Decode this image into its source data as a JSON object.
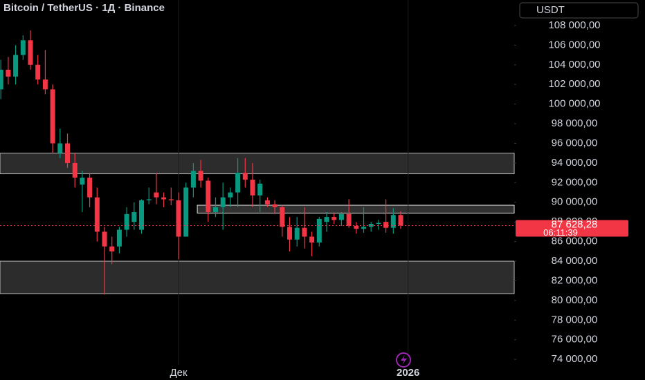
{
  "chart_data": {
    "type": "candlestick",
    "title": "Bitcoin / TetherUS · 1Д · Binance",
    "currency_button": "USDT",
    "up_color": "#089981",
    "down_color": "#f23645",
    "open": [
      101500,
      103500,
      102800,
      105000,
      106500,
      104000,
      102500,
      101500,
      95000,
      96000,
      94000,
      91800,
      92500,
      90500,
      87000,
      85500,
      85500,
      87200,
      88000,
      87200,
      90200,
      91000,
      90500,
      90300,
      90200,
      86500,
      91500,
      93200,
      92200,
      89000,
      89500,
      90500,
      91000,
      93000,
      92300,
      90700,
      90200,
      89800,
      89500,
      87500,
      86200,
      87400,
      86500,
      85900,
      88000,
      88500,
      88200,
      88800,
      87600,
      87300,
      87500,
      87800,
      88000,
      87400,
      88700
    ],
    "high": [
      104500,
      104800,
      106000,
      107000,
      107500,
      105000,
      105500,
      102000,
      97500,
      97000,
      95000,
      93200,
      93000,
      91500,
      87500,
      86500,
      87500,
      89500,
      90000,
      90300,
      91500,
      93000,
      91000,
      91500,
      91000,
      92000,
      94000,
      94300,
      92500,
      90500,
      92000,
      91500,
      94500,
      94500,
      94000,
      92300,
      90500,
      90200,
      89700,
      88500,
      88500,
      89500,
      87000,
      88500,
      89000,
      88900,
      89000,
      90300,
      88000,
      89500,
      88000,
      88200,
      90300,
      89400,
      89100
    ],
    "low": [
      100500,
      102000,
      102000,
      104500,
      103500,
      102000,
      101000,
      95000,
      94500,
      93500,
      91500,
      89000,
      89500,
      86000,
      80600,
      83700,
      84800,
      86500,
      87200,
      86800,
      89800,
      89800,
      89500,
      89700,
      84200,
      86500,
      90500,
      91500,
      88000,
      88500,
      87200,
      89500,
      89500,
      91500,
      89500,
      89000,
      89500,
      88800,
      86500,
      85000,
      85500,
      85300,
      84500,
      85500,
      87000,
      87800,
      87600,
      87400,
      86800,
      86900,
      87000,
      87200,
      86900,
      86800,
      87300
    ],
    "close": [
      103500,
      102800,
      105000,
      106500,
      104000,
      102500,
      101500,
      96000,
      96000,
      94000,
      92500,
      92500,
      90500,
      87000,
      85500,
      85000,
      87200,
      88800,
      89000,
      90200,
      90300,
      90500,
      90300,
      90200,
      86500,
      91500,
      93200,
      92200,
      89000,
      89500,
      90500,
      91000,
      93000,
      92300,
      90700,
      91900,
      89800,
      89500,
      87500,
      86200,
      87400,
      86500,
      85900,
      88300,
      88500,
      88200,
      88800,
      87600,
      87300,
      87500,
      87800,
      87900,
      87400,
      88700,
      87628.28
    ],
    "xticks": [
      {
        "value": 24,
        "label": "Дек"
      },
      {
        "value": 55,
        "label": "2026"
      }
    ],
    "ylim": [
      71900,
      110600
    ],
    "yticks": [
      {
        "value": 108000,
        "label": "108 000,00"
      },
      {
        "value": 106000,
        "label": "106 000,00"
      },
      {
        "value": 104000,
        "label": "104 000,00"
      },
      {
        "value": 102000,
        "label": "102 000,00"
      },
      {
        "value": 100000,
        "label": "100 000,00"
      },
      {
        "value": 98000,
        "label": "98 000,00"
      },
      {
        "value": 96000,
        "label": "96 000,00"
      },
      {
        "value": 94000,
        "label": "94 000,00"
      },
      {
        "value": 92000,
        "label": "92 000,00"
      },
      {
        "value": 90000,
        "label": "90 000,00"
      },
      {
        "value": 88000,
        "label": "88 000,00"
      },
      {
        "value": 86000,
        "label": "86 000,00"
      },
      {
        "value": 84000,
        "label": "84 000,00"
      },
      {
        "value": 82000,
        "label": "82 000,00"
      },
      {
        "value": 80000,
        "label": "80 000,00"
      },
      {
        "value": 78000,
        "label": "78 000,00"
      },
      {
        "value": 76000,
        "label": "76 000,00"
      },
      {
        "value": 74000,
        "label": "74 000,00"
      }
    ],
    "zones": [
      {
        "low": 92900,
        "high": 95000
      },
      {
        "low": 80700,
        "high": 84000
      },
      {
        "low": 88900,
        "high": 89700,
        "start": 27
      }
    ],
    "current_price": {
      "value": 87628.28,
      "label": "87 628,28",
      "countdown": "06:11:39"
    }
  }
}
